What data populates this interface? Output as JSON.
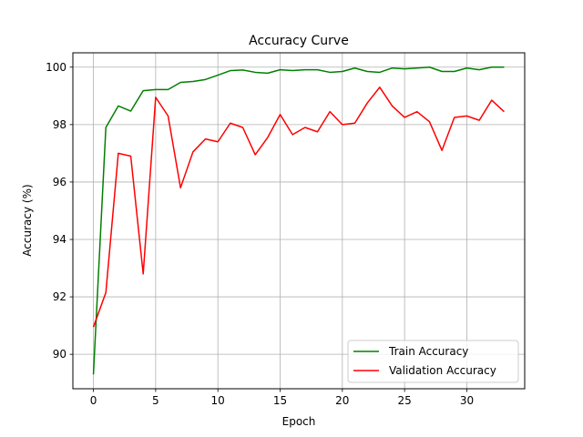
{
  "chart_data": {
    "type": "line",
    "title": "Accuracy Curve",
    "xlabel": "Epoch",
    "ylabel": "Accuracy (%)",
    "xlim": [
      -1.65,
      34.65
    ],
    "ylim": [
      88.8,
      100.5
    ],
    "xticks": [
      0,
      5,
      10,
      15,
      20,
      25,
      30
    ],
    "yticks": [
      90,
      92,
      94,
      96,
      98,
      100
    ],
    "grid": true,
    "legend_position": "lower-right",
    "x": [
      0,
      1,
      2,
      3,
      4,
      5,
      6,
      7,
      8,
      9,
      10,
      11,
      12,
      13,
      14,
      15,
      16,
      17,
      18,
      19,
      20,
      21,
      22,
      23,
      24,
      25,
      26,
      27,
      28,
      29,
      30,
      31,
      32,
      33
    ],
    "series": [
      {
        "name": "Train Accuracy",
        "color": "#008000",
        "values": [
          89.3,
          97.9,
          98.65,
          98.47,
          99.18,
          99.22,
          99.22,
          99.47,
          99.5,
          99.57,
          99.72,
          99.88,
          99.9,
          99.82,
          99.79,
          99.91,
          99.88,
          99.91,
          99.91,
          99.82,
          99.85,
          99.97,
          99.85,
          99.82,
          99.97,
          99.94,
          99.97,
          100.0,
          99.85,
          99.85,
          99.97,
          99.91,
          100.0,
          100.0
        ]
      },
      {
        "name": "Validation Accuracy",
        "color": "#ff0000",
        "values": [
          90.95,
          92.15,
          97.0,
          96.9,
          92.8,
          98.95,
          98.3,
          95.8,
          97.05,
          97.5,
          97.4,
          98.05,
          97.9,
          96.95,
          97.55,
          98.35,
          97.65,
          97.9,
          97.75,
          98.45,
          98.0,
          98.05,
          98.75,
          99.3,
          98.65,
          98.25,
          98.45,
          98.1,
          97.1,
          98.25,
          98.3,
          98.15,
          98.85,
          98.45
        ]
      }
    ]
  }
}
